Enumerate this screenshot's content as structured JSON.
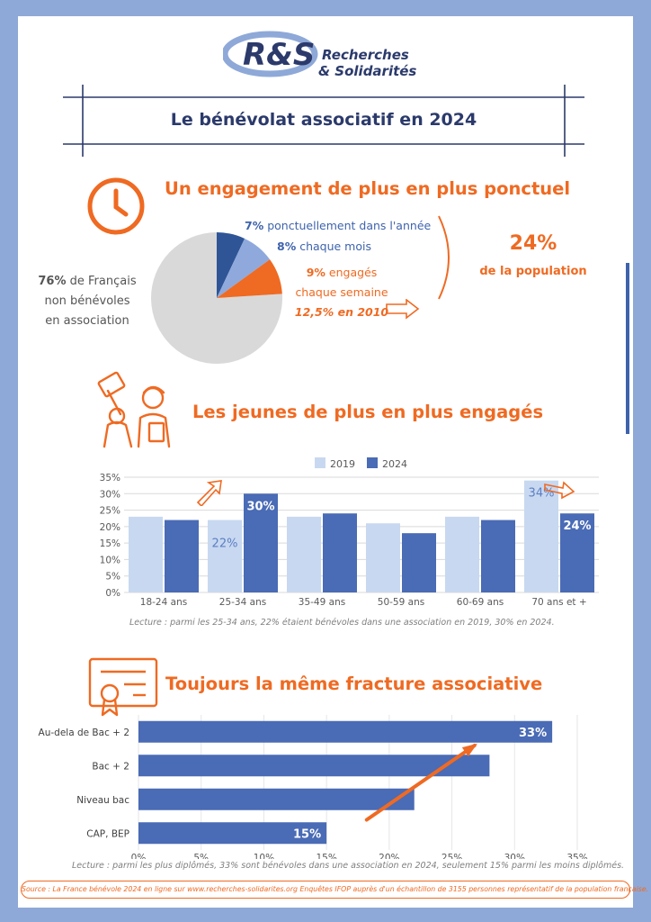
{
  "logo": {
    "letters": "R&S",
    "line1": "Recherches",
    "line2": "& Solidarités"
  },
  "page_title": "Le bénévolat associatif en 2024",
  "section1": {
    "title": "Un engagement de plus en plus ponctuel",
    "non_volunteer_pct": "76%",
    "non_volunteer_text1": " de Français",
    "non_volunteer_text2": "non bénévoles",
    "non_volunteer_text3": "en association",
    "ponctuel_pct": "7%",
    "ponctuel_text": " ponctuellement dans l'année",
    "mois_pct": "8%",
    "mois_text": " chaque mois",
    "semaine_pct": "9%",
    "semaine_text1": " engagés",
    "semaine_text2": "chaque semaine",
    "semaine_2010": "12,5% en 2010",
    "total_pct": "24%",
    "total_text": "de la population"
  },
  "section2": {
    "title": "Les jeunes de plus en plus engagés",
    "note": "Lecture : parmi les 25-34 ans, 22% étaient bénévoles dans une association en 2019, 30% en 2024."
  },
  "section3": {
    "title": "Toujours la même fracture associative",
    "note": "Lecture : parmi les plus diplômés, 33% sont bénévoles dans une association en 2024, seulement 15% parmi les moins diplômés."
  },
  "footer": "Source : La France bénévole 2024 en ligne sur www.recherches-solidarites.org   Enquêtes IFOP auprès d'un échantillon de 3155 personnes représentatif de la population française.",
  "colors": {
    "orange": "#ef6a22",
    "blue_dark": "#4a6bb5",
    "blue_light": "#c8d8f0",
    "navy": "#2b3a6b",
    "pie_grey": "#d9d9d9"
  },
  "chart_data": [
    {
      "type": "pie",
      "categories": [
        "non bénévoles",
        "ponctuellement dans l'année",
        "chaque mois",
        "chaque semaine"
      ],
      "values": [
        76,
        7,
        8,
        9
      ],
      "colors": [
        "#d9d9d9",
        "#2f5597",
        "#8fa9dc",
        "#ef6a22"
      ]
    },
    {
      "type": "bar",
      "categories": [
        "18-24 ans",
        "25-34 ans",
        "35-49 ans",
        "50-59 ans",
        "60-69 ans",
        "70 ans et +"
      ],
      "series": [
        {
          "name": "2019",
          "values": [
            23,
            22,
            23,
            21,
            23,
            34
          ]
        },
        {
          "name": "2024",
          "values": [
            22,
            30,
            24,
            18,
            22,
            24
          ]
        }
      ],
      "data_labels": [
        {
          "category": "25-34 ans",
          "series": "2019",
          "text": "22%"
        },
        {
          "category": "25-34 ans",
          "series": "2024",
          "text": "30%"
        },
        {
          "category": "70 ans et +",
          "series": "2019",
          "text": "34%"
        },
        {
          "category": "70 ans et +",
          "series": "2024",
          "text": "24%"
        }
      ],
      "yticks": [
        "0%",
        "5%",
        "10%",
        "15%",
        "20%",
        "25%",
        "30%",
        "35%"
      ],
      "ylim": [
        0,
        35
      ],
      "legend": "top"
    },
    {
      "type": "bar",
      "orientation": "horizontal",
      "categories": [
        "Au-dela de Bac + 2",
        "Bac + 2",
        "Niveau bac",
        "CAP, BEP"
      ],
      "values": [
        33,
        28,
        22,
        15
      ],
      "data_labels": [
        {
          "category": "Au-dela de Bac + 2",
          "text": "33%"
        },
        {
          "category": "CAP, BEP",
          "text": "15%"
        }
      ],
      "xticks": [
        "0%",
        "5%",
        "10%",
        "15%",
        "20%",
        "25%",
        "30%",
        "35%"
      ],
      "xlim": [
        0,
        35
      ]
    }
  ]
}
